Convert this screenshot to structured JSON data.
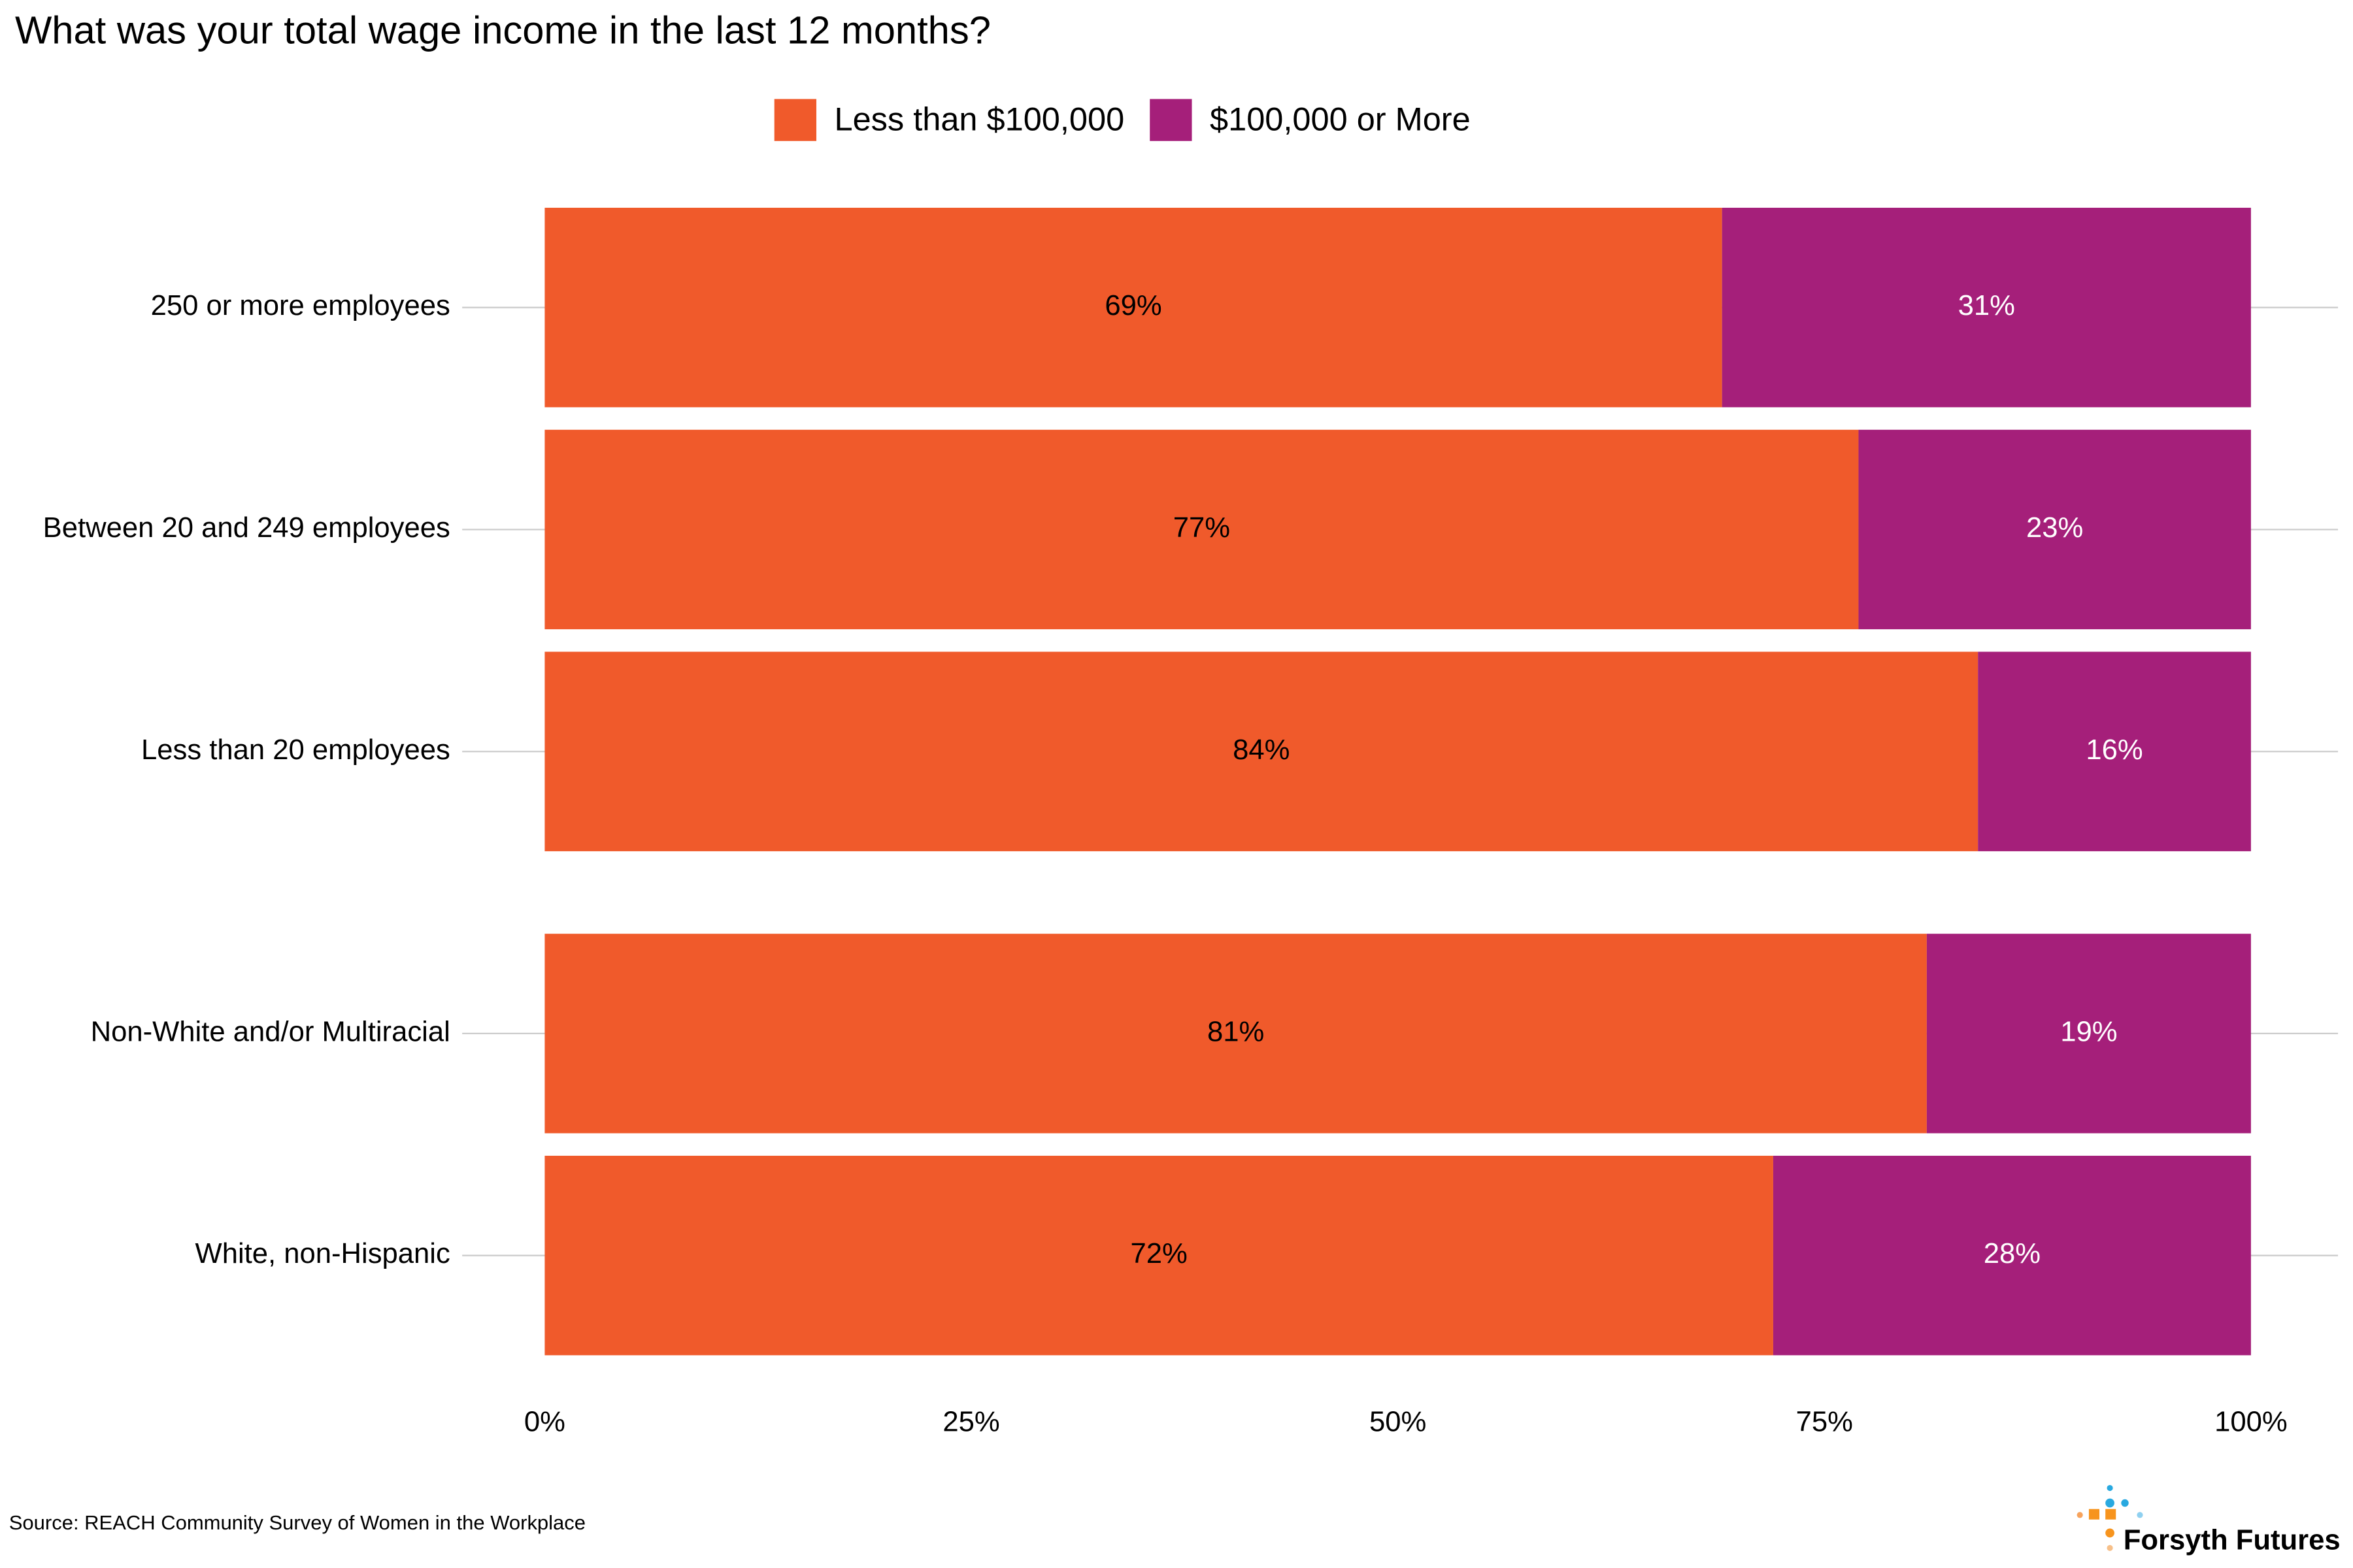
{
  "chart_data": {
    "type": "stacked-barh",
    "title": "What was your total wage income in the last 12 months?",
    "categories": [
      "250 or more employees",
      "Between 20 and 249 employees",
      "Less than 20 employees",
      "Non-White and/or Multiracial",
      "White, non-Hispanic"
    ],
    "series": [
      {
        "name": "Less than $100,000",
        "color": "#f05a2b",
        "label_color": "#000000",
        "values": [
          69,
          77,
          84,
          81,
          72
        ],
        "value_labels": [
          "69%",
          "77%",
          "84%",
          "81%",
          "72%"
        ]
      },
      {
        "name": "$100,000 or More",
        "color": "#a51f7a",
        "label_color": "#ffffff",
        "values": [
          31,
          23,
          16,
          19,
          28
        ],
        "value_labels": [
          "31%",
          "23%",
          "16%",
          "19%",
          "28%"
        ]
      }
    ],
    "xlim": [
      0,
      100
    ],
    "xticks": [
      {
        "value": 0,
        "label": "0%"
      },
      {
        "value": 25,
        "label": "25%"
      },
      {
        "value": 50,
        "label": "50%"
      },
      {
        "value": 75,
        "label": "75%"
      },
      {
        "value": 100,
        "label": "100%"
      }
    ],
    "legend": "top",
    "source": "Source: REACH Community Survey of Women in the Workplace",
    "brand": "Forsyth Futures"
  }
}
